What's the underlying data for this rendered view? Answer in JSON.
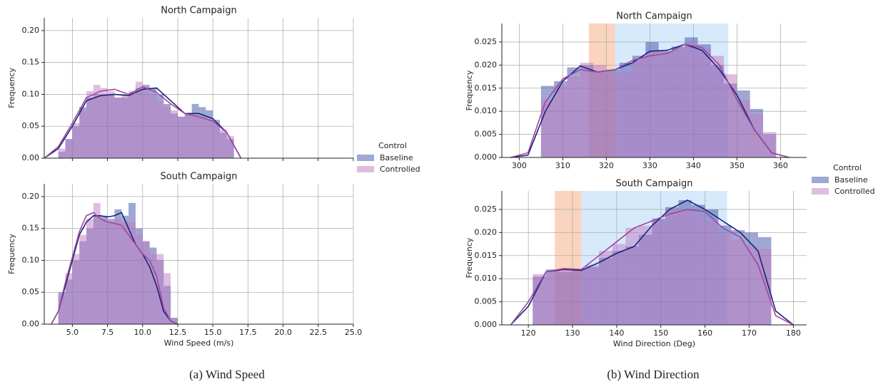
{
  "chart_data": [
    {
      "type": "histogram",
      "title": "North Campaign",
      "ylabel": "Frequency",
      "legend": true,
      "legend_title": "Control",
      "xlim": [
        3,
        25
      ],
      "xticks": [
        5,
        7.5,
        10,
        12.5,
        15,
        17.5,
        20,
        22.5,
        25
      ],
      "show_xtick_labels": false,
      "ylim": [
        0,
        0.22
      ],
      "yticks": [
        {
          "value": 0,
          "label": "0.00"
        },
        {
          "value": 0.05,
          "label": "0.05"
        },
        {
          "value": 0.1,
          "label": "0.10"
        },
        {
          "value": 0.15,
          "label": "0.15"
        },
        {
          "value": 0.2,
          "label": "0.20"
        }
      ],
      "grid": true,
      "bins": [
        4,
        4.5,
        5,
        5.5,
        6,
        6.5,
        7,
        7.5,
        8,
        8.5,
        9,
        9.5,
        10,
        10.5,
        11,
        11.5,
        12,
        12.5,
        13,
        13.5,
        14,
        14.5,
        15,
        15.5,
        16,
        16.5
      ],
      "kde_x": [
        3,
        4,
        5,
        6,
        7,
        8,
        9,
        10,
        11,
        12,
        13,
        14,
        15,
        16,
        17
      ],
      "series": [
        {
          "name": "Baseline",
          "color": "#3f4fa8",
          "line_color": "#18237a",
          "values": [
            0.01,
            0.03,
            0.05,
            0.08,
            0.095,
            0.1,
            0.1,
            0.1,
            0.095,
            0.095,
            0.1,
            0.11,
            0.115,
            0.11,
            0.1,
            0.085,
            0.07,
            0.065,
            0.07,
            0.085,
            0.08,
            0.075,
            0.06,
            0.04,
            0.03
          ],
          "kde": [
            0,
            0.015,
            0.05,
            0.09,
            0.098,
            0.1,
            0.098,
            0.108,
            0.11,
            0.09,
            0.07,
            0.07,
            0.062,
            0.04,
            0
          ]
        },
        {
          "name": "Controlled",
          "color": "#c27cc2",
          "line_color": "#a0479c",
          "values": [
            0.015,
            0.03,
            0.055,
            0.075,
            0.105,
            0.115,
            0.11,
            0.105,
            0.095,
            0.1,
            0.105,
            0.12,
            0.11,
            0.1,
            0.09,
            0.08,
            0.075,
            0.065,
            0.07,
            0.065,
            0.065,
            0.06,
            0.055,
            0.045,
            0.035
          ],
          "kde": [
            0,
            0.018,
            0.055,
            0.095,
            0.105,
            0.108,
            0.1,
            0.112,
            0.103,
            0.085,
            0.07,
            0.065,
            0.058,
            0.04,
            0
          ]
        }
      ]
    },
    {
      "type": "histogram",
      "title": "South Campaign",
      "ylabel": "Frequency",
      "xlabel": "Wind Speed (m/s)",
      "xlim": [
        3,
        25
      ],
      "xticks": [
        {
          "value": 5,
          "label": "5.0"
        },
        {
          "value": 7.5,
          "label": "7.5"
        },
        {
          "value": 10,
          "label": "10.0"
        },
        {
          "value": 12.5,
          "label": "12.5"
        },
        {
          "value": 15,
          "label": "15.0"
        },
        {
          "value": 17.5,
          "label": "17.5"
        },
        {
          "value": 20,
          "label": "20.0"
        },
        {
          "value": 22.5,
          "label": "22.5"
        },
        {
          "value": 25,
          "label": "25.0"
        }
      ],
      "show_xtick_labels": true,
      "ylim": [
        0,
        0.22
      ],
      "yticks": [
        {
          "value": 0,
          "label": "0.00"
        },
        {
          "value": 0.05,
          "label": "0.05"
        },
        {
          "value": 0.1,
          "label": "0.10"
        },
        {
          "value": 0.15,
          "label": "0.15"
        },
        {
          "value": 0.2,
          "label": "0.20"
        }
      ],
      "grid": true,
      "bins": [
        4,
        4.5,
        5,
        5.5,
        6,
        6.5,
        7,
        7.5,
        8,
        8.5,
        9,
        9.5,
        10,
        10.5,
        11,
        11.5,
        12,
        12.5
      ],
      "kde_x": [
        3.5,
        4,
        4.5,
        5,
        5.5,
        6,
        6.5,
        7,
        7.5,
        8,
        8.5,
        9,
        9.5,
        10,
        10.5,
        11,
        11.5,
        12,
        12.5
      ],
      "series": [
        {
          "name": "Baseline",
          "color": "#3f4fa8",
          "line_color": "#18237a",
          "values": [
            0.05,
            0.07,
            0.1,
            0.13,
            0.15,
            0.17,
            0.17,
            0.165,
            0.18,
            0.17,
            0.19,
            0.15,
            0.13,
            0.12,
            0.1,
            0.06,
            0.01
          ],
          "kde": [
            0,
            0.02,
            0.06,
            0.1,
            0.14,
            0.16,
            0.17,
            0.17,
            0.168,
            0.17,
            0.175,
            0.15,
            0.125,
            0.11,
            0.09,
            0.06,
            0.02,
            0.005,
            0
          ]
        },
        {
          "name": "Controlled",
          "color": "#c27cc2",
          "line_color": "#a0479c",
          "values": [
            0.045,
            0.08,
            0.11,
            0.14,
            0.165,
            0.19,
            0.165,
            0.16,
            0.165,
            0.16,
            0.16,
            0.14,
            0.13,
            0.11,
            0.11,
            0.08,
            0.01
          ],
          "kde": [
            0,
            0.02,
            0.065,
            0.105,
            0.145,
            0.17,
            0.175,
            0.165,
            0.16,
            0.158,
            0.155,
            0.14,
            0.125,
            0.11,
            0.1,
            0.075,
            0.025,
            0.005,
            0
          ]
        }
      ]
    },
    {
      "type": "histogram",
      "title": "North Campaign",
      "ylabel": "Frequency",
      "legend": true,
      "legend_title": "Control",
      "xlim": [
        296,
        366
      ],
      "xticks": [
        300,
        310,
        320,
        330,
        340,
        350,
        360
      ],
      "show_xtick_labels": true,
      "ylim": [
        0,
        0.029
      ],
      "yticks": [
        {
          "value": 0,
          "label": "0.000"
        },
        0.005,
        {
          "value": 0.01,
          "label": "0.010"
        },
        0.015,
        {
          "value": 0.02,
          "label": "0.020"
        },
        0.025
      ],
      "grid": true,
      "regions": [
        {
          "xspan": [
            316,
            322
          ],
          "color": "#f6b088"
        },
        {
          "xspan": [
            322,
            348
          ],
          "color": "#b4d8fa"
        }
      ],
      "bins": [
        305,
        308,
        311,
        314,
        317,
        320,
        323,
        326,
        329,
        332,
        335,
        338,
        341,
        344,
        347,
        350,
        353,
        356,
        359
      ],
      "kde_x": [
        298,
        302,
        306,
        310,
        314,
        318,
        322,
        326,
        330,
        334,
        338,
        342,
        346,
        350,
        354,
        358,
        362
      ],
      "series": [
        {
          "name": "Baseline",
          "color": "#3f4fa8",
          "line_color": "#18237a",
          "values": [
            0.0155,
            0.0165,
            0.0195,
            0.02,
            0.0185,
            0.019,
            0.0205,
            0.022,
            0.025,
            0.023,
            0.024,
            0.026,
            0.0245,
            0.02,
            0.016,
            0.0145,
            0.0105,
            0.005
          ],
          "kde": [
            0,
            0.0005,
            0.01,
            0.0165,
            0.0198,
            0.0185,
            0.019,
            0.0205,
            0.023,
            0.0232,
            0.0245,
            0.0232,
            0.019,
            0.0135,
            0.006,
            0.001,
            0
          ]
        },
        {
          "name": "Controlled",
          "color": "#c27cc2",
          "line_color": "#a0479c",
          "values": [
            0.0125,
            0.0155,
            0.0175,
            0.0205,
            0.02,
            0.018,
            0.0185,
            0.0215,
            0.023,
            0.023,
            0.0235,
            0.025,
            0.0235,
            0.022,
            0.018,
            0.0125,
            0.0095,
            0.0055
          ],
          "kde": [
            0,
            0.001,
            0.012,
            0.017,
            0.019,
            0.0185,
            0.019,
            0.021,
            0.022,
            0.0225,
            0.0245,
            0.0238,
            0.02,
            0.0125,
            0.006,
            0.001,
            0
          ]
        }
      ]
    },
    {
      "type": "histogram",
      "title": "South Campaign",
      "ylabel": "Frequency",
      "xlabel": "Wind Direction (Deg)",
      "xlim": [
        114,
        183
      ],
      "xticks": [
        120,
        130,
        140,
        150,
        160,
        170,
        180
      ],
      "show_xtick_labels": true,
      "ylim": [
        0,
        0.029
      ],
      "yticks": [
        {
          "value": 0,
          "label": "0.000"
        },
        0.005,
        {
          "value": 0.01,
          "label": "0.010"
        },
        0.015,
        {
          "value": 0.02,
          "label": "0.020"
        },
        0.025
      ],
      "grid": true,
      "regions": [
        {
          "xspan": [
            126,
            132
          ],
          "color": "#f6b088"
        },
        {
          "xspan": [
            132,
            165
          ],
          "color": "#b4d8fa"
        }
      ],
      "bins": [
        121,
        124,
        127,
        130,
        133,
        136,
        139,
        142,
        145,
        148,
        151,
        154,
        157,
        160,
        163,
        166,
        169,
        172,
        175
      ],
      "kde_x": [
        116,
        120,
        124,
        128,
        132,
        136,
        140,
        144,
        148,
        152,
        156,
        160,
        164,
        168,
        172,
        176,
        180
      ],
      "series": [
        {
          "name": "Baseline",
          "color": "#3f4fa8",
          "line_color": "#18237a",
          "values": [
            0.0105,
            0.012,
            0.0115,
            0.012,
            0.0125,
            0.0145,
            0.016,
            0.017,
            0.0195,
            0.023,
            0.0255,
            0.027,
            0.026,
            0.025,
            0.0215,
            0.0205,
            0.02,
            0.019
          ],
          "kde": [
            0,
            0.004,
            0.0115,
            0.012,
            0.0118,
            0.0135,
            0.0155,
            0.017,
            0.0215,
            0.025,
            0.027,
            0.025,
            0.0225,
            0.02,
            0.016,
            0.003,
            0
          ]
        },
        {
          "name": "Controlled",
          "color": "#c27cc2",
          "line_color": "#a0479c",
          "values": [
            0.011,
            0.0115,
            0.012,
            0.012,
            0.013,
            0.016,
            0.0175,
            0.021,
            0.0215,
            0.0225,
            0.025,
            0.025,
            0.024,
            0.0225,
            0.02,
            0.0185,
            0.017,
            0.0165
          ],
          "kde": [
            0,
            0.005,
            0.0115,
            0.0122,
            0.012,
            0.015,
            0.018,
            0.021,
            0.0225,
            0.024,
            0.025,
            0.0245,
            0.021,
            0.019,
            0.013,
            0.002,
            0
          ]
        }
      ]
    }
  ],
  "captions": [
    "(a) Wind Speed",
    "(b) Wind Direction"
  ]
}
